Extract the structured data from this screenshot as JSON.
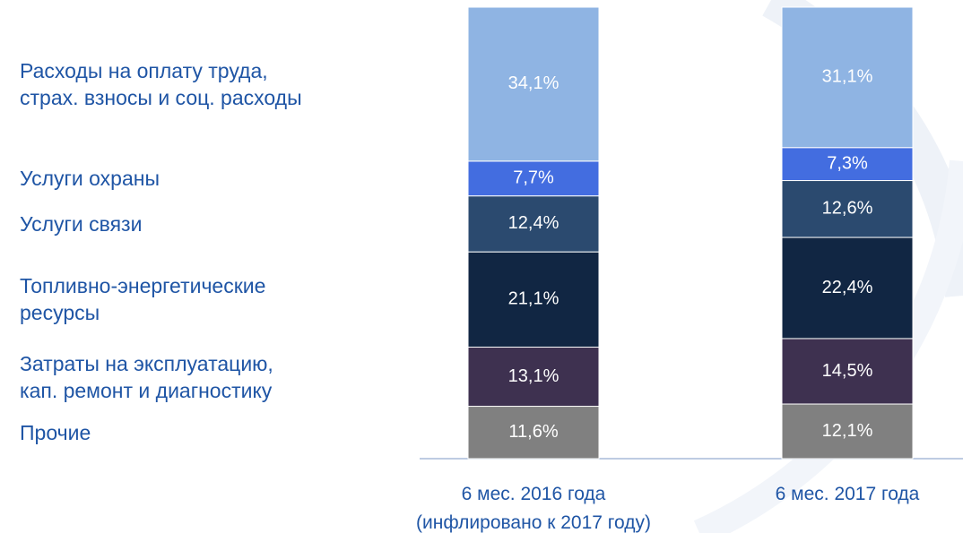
{
  "chart_data": {
    "type": "stacked_bar",
    "categories": [
      "6 мес. 2016 года\n(инфлировано к 2017 году)",
      "6 мес. 2017 года"
    ],
    "ylim": [
      0,
      100
    ],
    "series": [
      {
        "name": "Прочие",
        "color": "#808080",
        "values": [
          11.6,
          12.1
        ],
        "value_labels": [
          "11,6%",
          "12,1%"
        ]
      },
      {
        "name": "Затраты на эксплуатацию,\nкап. ремонт и диагностику",
        "color": "#3e3150",
        "values": [
          13.1,
          14.5
        ],
        "value_labels": [
          "13,1%",
          "14,5%"
        ]
      },
      {
        "name": "Топливно-энергетические\nресурсы",
        "color": "#112643",
        "values": [
          21.1,
          22.4
        ],
        "value_labels": [
          "21,1%",
          "22,4%"
        ]
      },
      {
        "name": "Услуги связи",
        "color": "#2b4a6f",
        "values": [
          12.4,
          12.6
        ],
        "value_labels": [
          "12,4%",
          "12,6%"
        ]
      },
      {
        "name": "Услуги охраны",
        "color": "#436de0",
        "values": [
          7.7,
          7.3
        ],
        "value_labels": [
          "7,7%",
          "7,3%"
        ]
      },
      {
        "name": "Расходы на оплату труда,\nстрах. взносы и соц. расходы",
        "color": "#8fb4e3",
        "values": [
          34.1,
          31.1
        ],
        "value_labels": [
          "34,1%",
          "31,1%"
        ]
      }
    ]
  }
}
